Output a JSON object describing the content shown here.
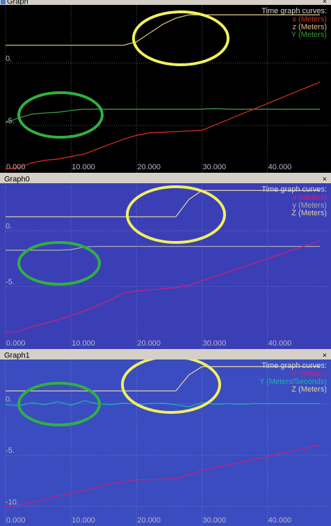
{
  "chart_data": [
    {
      "type": "line",
      "title": "Graph",
      "close_button": "×",
      "legend_title": "Time graph curves:",
      "background": "#000000",
      "grid_color": "#5a5a5a",
      "grid": true,
      "x": [
        0,
        2,
        4,
        6,
        8,
        10,
        12,
        14,
        16,
        18,
        20,
        22,
        24,
        26,
        28,
        30,
        32,
        34,
        36,
        38,
        40,
        42,
        44,
        46,
        48
      ],
      "xlim": [
        0,
        49.7
      ],
      "xticks": [
        {
          "value": 0,
          "label": "0.000"
        },
        {
          "value": 10,
          "label": "10.000"
        },
        {
          "value": 20,
          "label": "20.000"
        },
        {
          "value": 30,
          "label": "30.000"
        },
        {
          "value": 40,
          "label": "40.000"
        }
      ],
      "ylim": [
        -8.8,
        4.66
      ],
      "yticks": [
        {
          "value": 0,
          "label": "0."
        },
        {
          "value": -5,
          "label": "-5."
        }
      ],
      "series": [
        {
          "name": "x (Meters)",
          "color": "#d03020",
          "values": [
            -8.5,
            -8.4,
            -8.0,
            -7.8,
            -7.7,
            -7.5,
            -7.3,
            -6.9,
            -6.5,
            -6.1,
            -5.8,
            -5.6,
            -5.55,
            -5.5,
            -5.45,
            -5.4,
            -4.97,
            -4.54,
            -4.1,
            -3.68,
            -3.25,
            -2.82,
            -2.39,
            -1.96,
            -1.53
          ]
        },
        {
          "name": "z (Meters)",
          "color": "#d8c080",
          "values": [
            1.42,
            1.42,
            1.42,
            1.42,
            1.42,
            1.42,
            1.42,
            1.42,
            1.42,
            1.42,
            1.7,
            2.4,
            3.1,
            3.6,
            3.86,
            3.86,
            3.86,
            3.86,
            3.86,
            3.86,
            3.86,
            3.86,
            3.86,
            3.86,
            3.86
          ]
        },
        {
          "name": "Y (Meters)",
          "color": "#3a9a3a",
          "values": [
            -4.8,
            -4.4,
            -4.1,
            -4.0,
            -3.95,
            -3.8,
            -3.7,
            -3.7,
            -3.7,
            -3.7,
            -3.7,
            -3.7,
            -3.7,
            -3.7,
            -3.7,
            -3.7,
            -3.65,
            -3.7,
            -3.7,
            -3.7,
            -3.7,
            -3.7,
            -3.7,
            -3.7,
            -3.7
          ]
        }
      ]
    },
    {
      "type": "line",
      "title": "Graph0",
      "close_button": "×",
      "legend_title": "Time graph curves:",
      "background": "#3b3fb5",
      "grid_color": "#6b6fd0",
      "grid": true,
      "x": [
        0,
        2,
        4,
        6,
        8,
        10,
        12,
        14,
        16,
        18,
        20,
        22,
        24,
        26,
        28,
        30,
        32,
        34,
        36,
        38,
        40,
        42,
        44,
        46,
        48
      ],
      "xlim": [
        0,
        49.7
      ],
      "xticks": [
        {
          "value": 0,
          "label": "0.000"
        },
        {
          "value": 10,
          "label": "10.000"
        },
        {
          "value": 20,
          "label": "20.000"
        },
        {
          "value": 30,
          "label": "30.000"
        },
        {
          "value": 40,
          "label": "40.000"
        }
      ],
      "ylim": [
        -10.6,
        4.25
      ],
      "yticks": [
        {
          "value": 0,
          "label": "0."
        },
        {
          "value": -5,
          "label": "-5."
        }
      ],
      "series": [
        {
          "name": "x (Meters)",
          "color": "#c82080",
          "values": [
            -9.1,
            -9.0,
            -8.6,
            -8.3,
            -8.0,
            -7.6,
            -7.2,
            -6.7,
            -6.2,
            -5.6,
            -5.4,
            -5.3,
            -5.2,
            -5.1,
            -4.9,
            -4.5,
            -4.1,
            -3.7,
            -3.3,
            -2.9,
            -2.5,
            -2.1,
            -1.7,
            -1.3,
            -0.9
          ]
        },
        {
          "name": "y (Meters)",
          "color": "#a8a8b8",
          "values": [
            -1.75,
            -1.75,
            -1.75,
            -1.75,
            -1.75,
            -1.7,
            -1.45,
            -1.4,
            -1.4,
            -1.4,
            -1.4,
            -1.4,
            -1.4,
            -1.4,
            -1.4,
            -1.4,
            -1.4,
            -1.4,
            -1.4,
            -1.4,
            -1.4,
            -1.4,
            -1.4,
            -1.4,
            -1.4
          ]
        },
        {
          "name": "Z (Meters)",
          "color": "#e0d0a0",
          "values": [
            1.25,
            1.25,
            1.25,
            1.25,
            1.25,
            1.25,
            1.25,
            1.25,
            1.25,
            1.25,
            1.25,
            1.25,
            1.25,
            1.25,
            2.8,
            3.6,
            3.6,
            3.6,
            3.6,
            3.6,
            3.6,
            3.6,
            3.6,
            3.6,
            3.6
          ]
        }
      ]
    },
    {
      "type": "line",
      "title": "Graph1",
      "close_button": "×",
      "legend_title": "Time graph curves:",
      "background": "#3a4cc0",
      "grid_color": "#6a7ad8",
      "grid": true,
      "x": [
        0,
        2,
        4,
        6,
        8,
        10,
        12,
        14,
        16,
        18,
        20,
        22,
        24,
        26,
        28,
        30,
        32,
        34,
        36,
        38,
        40,
        42,
        44,
        46,
        48
      ],
      "xlim": [
        0,
        49.7
      ],
      "xticks": [
        {
          "value": 0,
          "label": "0.000"
        },
        {
          "value": 10,
          "label": "10.000"
        },
        {
          "value": 20,
          "label": "20.000"
        },
        {
          "value": 30,
          "label": "30.000"
        },
        {
          "value": 40,
          "label": "40.000"
        }
      ],
      "ylim": [
        -11.9,
        4.3
      ],
      "yticks": [
        {
          "value": 0,
          "label": "0."
        },
        {
          "value": -5,
          "label": "-5."
        },
        {
          "value": -10,
          "label": "-10."
        }
      ],
      "series": [
        {
          "name": "X (Meters)",
          "color": "#c82080",
          "values": [
            -10.0,
            -9.9,
            -9.6,
            -9.3,
            -9.0,
            -8.7,
            -8.4,
            -8.1,
            -7.8,
            -7.6,
            -7.4,
            -7.4,
            -7.35,
            -7.3,
            -6.9,
            -6.5,
            -6.2,
            -5.95,
            -5.7,
            -5.4,
            -5.15,
            -4.85,
            -4.6,
            -4.3,
            -4.05
          ]
        },
        {
          "name": "Y (Meters/Seconds)",
          "color": "#20b0b0",
          "values": [
            -0.1,
            -0.2,
            0.1,
            -0.1,
            0.2,
            -0.15,
            0.3,
            0.0,
            -0.1,
            0.05,
            -0.05,
            0.0,
            0.05,
            -0.1,
            -0.3,
            0.1,
            -0.05,
            0.0,
            -0.05,
            0.0,
            0.0,
            0.0,
            0.0,
            0.0,
            0.0
          ]
        },
        {
          "name": "Z (Meters)",
          "color": "#e0d0a0",
          "values": [
            1.24,
            1.24,
            1.24,
            1.24,
            1.24,
            1.24,
            1.24,
            1.24,
            1.24,
            1.24,
            1.24,
            1.24,
            1.24,
            1.24,
            2.8,
            3.6,
            3.6,
            3.6,
            3.6,
            3.6,
            3.6,
            3.6,
            3.6,
            3.6,
            3.6
          ]
        }
      ]
    }
  ]
}
